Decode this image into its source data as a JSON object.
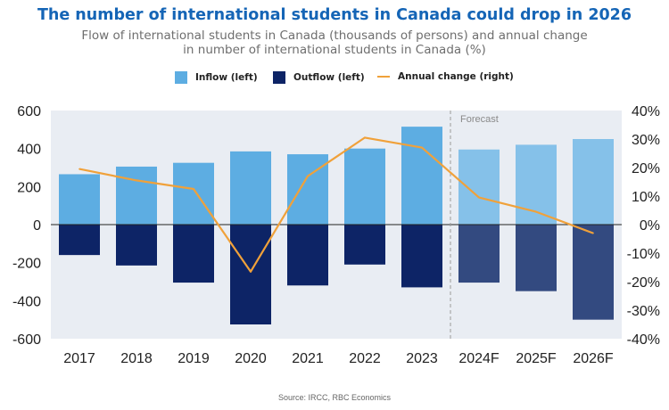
{
  "header": {
    "title": "The number of international students in Canada could drop in 2026",
    "subtitle_line1": "Flow of international students in Canada (thousands of persons) and annual change",
    "subtitle_line2": "in number of international students in Canada (%)"
  },
  "legend": {
    "inflow": "Inflow (left)",
    "outflow": "Outflow (left)",
    "change": "Annual change (right)"
  },
  "source": "Source: IRCC, RBC Economics",
  "colors": {
    "inflow": "#5dade2",
    "inflow_forecast": "#85c1e9",
    "outflow": "#0d2466",
    "outflow_forecast": "#334a80",
    "change": "#f0a13a",
    "plot_bg": "#e9edf3",
    "title": "#1565b6"
  },
  "chart_data": {
    "type": "bar",
    "title": "The number of international students in Canada could drop in 2026",
    "categories": [
      "2017",
      "2018",
      "2019",
      "2020",
      "2021",
      "2022",
      "2023",
      "2024F",
      "2025F",
      "2026F"
    ],
    "forecast_from_index": 7,
    "forecast_label": "Forecast",
    "series": [
      {
        "name": "Inflow (left)",
        "axis": "left",
        "kind": "bar",
        "values": [
          265,
          305,
          325,
          385,
          370,
          400,
          515,
          395,
          420,
          450
        ]
      },
      {
        "name": "Outflow (left)",
        "axis": "left",
        "kind": "bar",
        "values": [
          -160,
          -215,
          -305,
          -525,
          -320,
          -210,
          -330,
          -305,
          -350,
          -500
        ]
      },
      {
        "name": "Annual change (right)",
        "axis": "right",
        "kind": "line",
        "values": [
          19.5,
          15.5,
          12.5,
          -16.5,
          17.0,
          30.5,
          27.0,
          9.5,
          4.5,
          -3.0
        ]
      }
    ],
    "ylim_left": [
      -600,
      600
    ],
    "yticks_left": [
      "600",
      "400",
      "200",
      "0",
      "-200",
      "-400",
      "-600"
    ],
    "ylim_right": [
      -40,
      40
    ],
    "yticks_right": [
      "40%",
      "30%",
      "20%",
      "10%",
      "0%",
      "-10%",
      "-20%",
      "-30%",
      "-40%"
    ],
    "grid": false,
    "legend_position": "top"
  }
}
